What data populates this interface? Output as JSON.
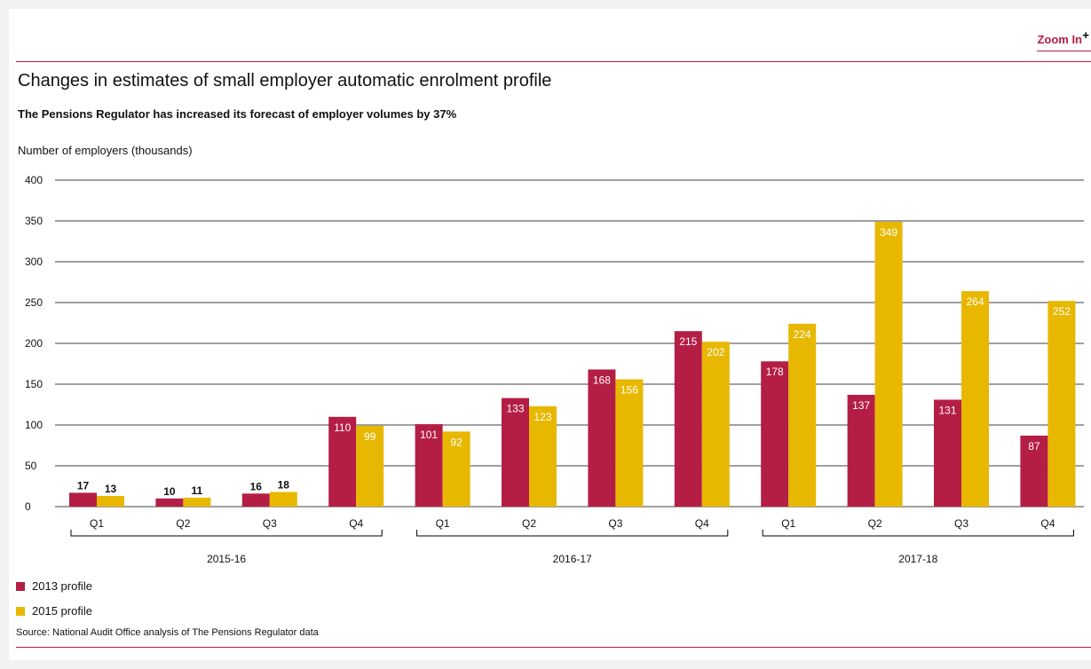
{
  "zoom_label": "Zoom In",
  "zoom_plus": "+",
  "title": "Changes in estimates of small employer automatic enrolment profile",
  "subtitle": "The Pensions Regulator has increased its forecast of employer volumes by 37%",
  "source": "Source: National Audit Office analysis of The Pensions Regulator data",
  "chart_data": {
    "type": "bar",
    "ylabel": "Number of employers (thousands)",
    "ylim": [
      0,
      400
    ],
    "yticks": [
      0,
      50,
      100,
      150,
      200,
      250,
      300,
      350,
      400
    ],
    "grid": true,
    "categories": [
      "Q1",
      "Q2",
      "Q3",
      "Q4",
      "Q1",
      "Q2",
      "Q3",
      "Q4",
      "Q1",
      "Q2",
      "Q3",
      "Q4"
    ],
    "groups": [
      {
        "label": "2015-16",
        "count": 4
      },
      {
        "label": "2016-17",
        "count": 4
      },
      {
        "label": "2017-18",
        "count": 4
      }
    ],
    "series": [
      {
        "name": "2013 profile",
        "color": "#b41e45",
        "values": [
          17,
          10,
          16,
          110,
          101,
          133,
          168,
          215,
          178,
          137,
          131,
          87
        ]
      },
      {
        "name": "2015 profile",
        "color": "#e8b800",
        "values": [
          13,
          11,
          18,
          99,
          92,
          123,
          156,
          202,
          224,
          349,
          264,
          252
        ]
      }
    ],
    "legend_position": "bottom-left"
  }
}
